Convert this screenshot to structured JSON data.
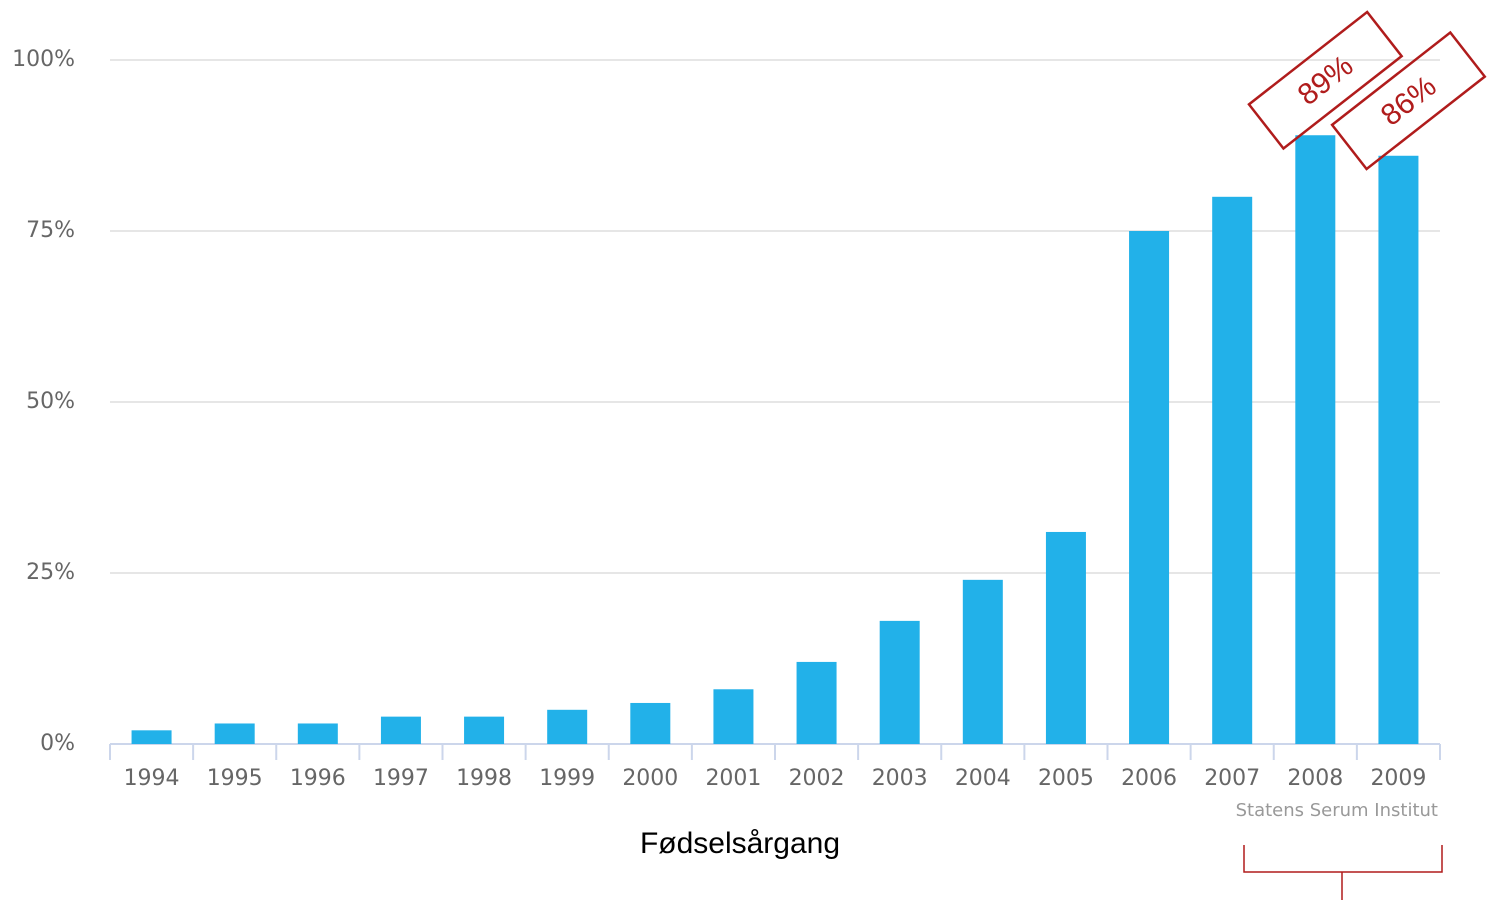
{
  "chart_data": {
    "type": "bar",
    "categories": [
      "1994",
      "1995",
      "1996",
      "1997",
      "1998",
      "1999",
      "2000",
      "2001",
      "2002",
      "2003",
      "2004",
      "2005",
      "2006",
      "2007",
      "2008",
      "2009"
    ],
    "values": [
      2,
      3,
      3,
      4,
      4,
      5,
      6,
      8,
      12,
      18,
      24,
      31,
      75,
      80,
      89,
      86
    ],
    "value_labels": [
      null,
      null,
      null,
      null,
      null,
      null,
      null,
      null,
      null,
      null,
      null,
      null,
      null,
      null,
      "89%",
      "86%"
    ],
    "color": "#22b1e9",
    "ylim": [
      0,
      100
    ],
    "yticks": [
      {
        "value": 0,
        "label": "0%"
      },
      {
        "value": 25,
        "label": "25%"
      },
      {
        "value": 50,
        "label": "50%"
      },
      {
        "value": 75,
        "label": "75%"
      },
      {
        "value": 100,
        "label": "100%"
      }
    ],
    "grid": true,
    "x_label": "Fødselsårgang",
    "source": "Statens Serum Institut"
  }
}
